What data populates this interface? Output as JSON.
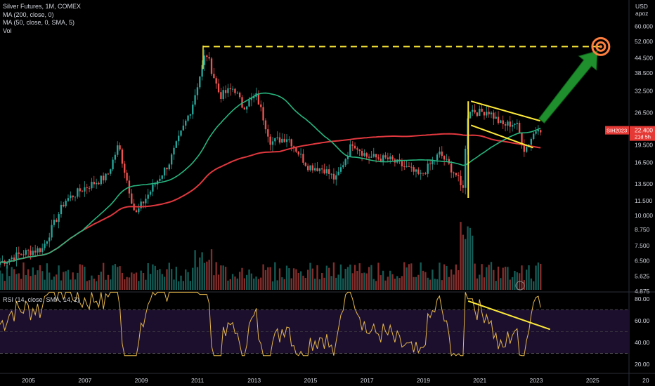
{
  "legend": {
    "title": "Silver Futures, 1M, COMEX",
    "ma200": "MA (200, close, 0)",
    "ma50": "MA (50, close, 0, SMA, 5)",
    "vol": "Vol"
  },
  "currency": {
    "unit": "USD",
    "mode": "apoz"
  },
  "rsi_label": "RSI (14, close, SMA, 14, 2)",
  "price_tag": {
    "symbol": "SIH2023",
    "price": "22.400",
    "countdown": "21d 5h"
  },
  "colors": {
    "background": "#000000",
    "up": "#26a69a",
    "down": "#ef5350",
    "ma200": "#e0383e",
    "ma50": "#26b57f",
    "pattern": "#ffeb3b",
    "target_dash": "#ffeb3b",
    "arrow": "#1e8f2c",
    "target": "#ff7f3f",
    "rsi": "#e6b84b",
    "rsi_band": "#1c0f2e"
  },
  "chart_data": {
    "type": "candlestick",
    "x_ticks": [
      "2005",
      "2007",
      "2009",
      "2011",
      "2013",
      "2015",
      "2017",
      "2019",
      "2021",
      "2023",
      "2025",
      "20"
    ],
    "y_ticks": [
      "60.000",
      "52.000",
      "44.500",
      "38.500",
      "32.500",
      "26.500",
      "22.400",
      "19.500",
      "16.500",
      "13.500",
      "11.500",
      "10.000",
      "8.750",
      "7.500",
      "6.500",
      "5.625",
      "4.875"
    ],
    "y_scale": "log",
    "anchors": [
      [
        2004.0,
        6.4
      ],
      [
        2004.8,
        7.0
      ],
      [
        2005.5,
        7.3
      ],
      [
        2006.3,
        11.5
      ],
      [
        2007.0,
        13.0
      ],
      [
        2007.8,
        14.5
      ],
      [
        2008.2,
        19.5
      ],
      [
        2008.8,
        10.0
      ],
      [
        2009.0,
        11.0
      ],
      [
        2010.0,
        16.5
      ],
      [
        2010.8,
        28.0
      ],
      [
        2011.3,
        47.0
      ],
      [
        2011.8,
        31.0
      ],
      [
        2012.3,
        33.5
      ],
      [
        2012.6,
        28.0
      ],
      [
        2013.1,
        31.0
      ],
      [
        2013.6,
        20.0
      ],
      [
        2014.2,
        21.0
      ],
      [
        2014.9,
        16.0
      ],
      [
        2015.5,
        15.5
      ],
      [
        2015.9,
        14.0
      ],
      [
        2016.5,
        20.0
      ],
      [
        2017.0,
        17.5
      ],
      [
        2017.8,
        17.0
      ],
      [
        2018.5,
        15.5
      ],
      [
        2018.9,
        14.5
      ],
      [
        2019.6,
        18.0
      ],
      [
        2020.2,
        14.5
      ],
      [
        2020.4,
        12.5
      ],
      [
        2020.6,
        27.5
      ],
      [
        2021.0,
        26.5
      ],
      [
        2021.3,
        27.0
      ],
      [
        2021.8,
        23.5
      ],
      [
        2022.3,
        24.0
      ],
      [
        2022.6,
        18.5
      ],
      [
        2022.9,
        21.5
      ],
      [
        2023.1,
        23.5
      ],
      [
        2023.2,
        22.4
      ]
    ],
    "pattern": {
      "flag_pole": {
        "x": 2020.6,
        "y_start": 11.8,
        "y_end": 29.5
      },
      "flag_upper": [
        [
          2020.7,
          29.5
        ],
        [
          2023.15,
          24.5
        ]
      ],
      "flag_lower": [
        [
          2020.7,
          23.5
        ],
        [
          2022.9,
          19.0
        ]
      ],
      "target_line": [
        [
          2011.2,
          49.5
        ],
        [
          2025.3,
          49.5
        ]
      ],
      "target_point": [
        2025.3,
        49.5
      ],
      "arrow_start": [
        2023.2,
        24.5
      ]
    },
    "rsi": {
      "y_ticks": [
        "80.00",
        "60.00",
        "40.00",
        "20.00"
      ],
      "band": [
        30,
        70
      ],
      "trend": [
        [
          2020.6,
          78
        ],
        [
          2023.5,
          52
        ]
      ]
    }
  }
}
